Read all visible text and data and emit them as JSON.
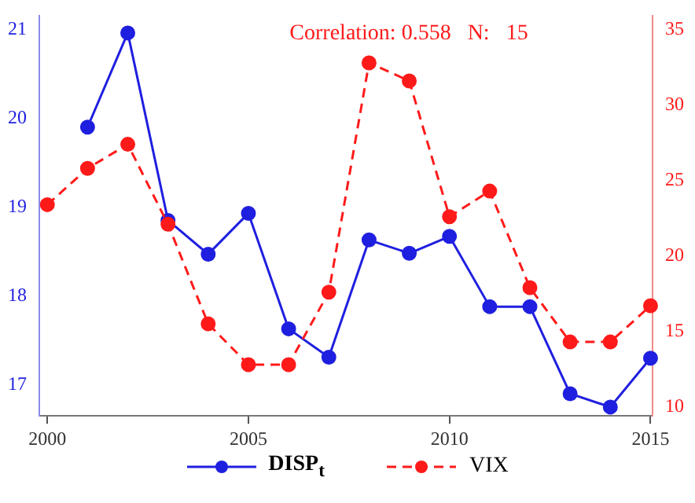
{
  "chart_data": {
    "type": "line",
    "x": [
      2000,
      2001,
      2002,
      2003,
      2004,
      2005,
      2006,
      2007,
      2008,
      2009,
      2010,
      2011,
      2012,
      2013,
      2014,
      2015
    ],
    "xlim": [
      1999.8,
      2015.05
    ],
    "xticks": [
      2000,
      2005,
      2010,
      2015
    ],
    "ylim": [
      16.65,
      21.15
    ],
    "yticks": [
      17,
      18,
      19,
      20,
      21
    ],
    "y2lim": [
      9.4,
      35.9
    ],
    "y2ticks": [
      10,
      15,
      20,
      25,
      30,
      35
    ],
    "series": [
      {
        "name": "DISP$_{t}$",
        "color": "#1f1fe0",
        "line_style": "solid",
        "values": [
          null,
          19.9,
          20.96,
          18.85,
          18.47,
          18.93,
          17.63,
          17.31,
          18.63,
          18.48,
          18.67,
          17.88,
          17.88,
          16.9,
          16.75,
          17.3
        ]
      },
      {
        "name": "VIX",
        "color": "#ff1a1a",
        "axis": "y2",
        "line_style": "dashed",
        "values": [
          23.4,
          25.8,
          27.4,
          22.1,
          15.5,
          12.8,
          12.8,
          17.6,
          32.8,
          31.6,
          22.6,
          24.3,
          17.9,
          14.3,
          14.3,
          16.7
        ]
      }
    ],
    "annotations": [
      "Correlation: 0.558   N:   15"
    ],
    "marker": "circle",
    "grid": false,
    "legend": "bottom"
  }
}
